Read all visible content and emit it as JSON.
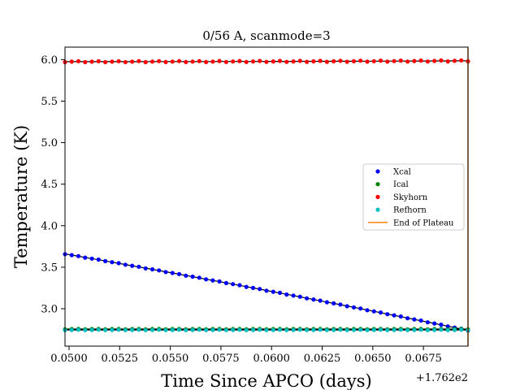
{
  "chart_data": {
    "type": "scatter",
    "title": "0/56 A, scanmode=3",
    "xlabel": "Time Since APCO (days)",
    "ylabel": "Temperature (K)",
    "x_offset_label": "+1.762e2",
    "xlim": [
      0.0498,
      0.0697
    ],
    "ylim": [
      2.55,
      6.15
    ],
    "x_ticks": [
      0.05,
      0.0525,
      0.055,
      0.0575,
      0.06,
      0.0625,
      0.065,
      0.0675
    ],
    "x_tick_labels": [
      "0.0500",
      "0.0525",
      "0.0550",
      "0.0575",
      "0.0600",
      "0.0625",
      "0.0650",
      "0.0675"
    ],
    "y_ticks": [
      3.0,
      3.5,
      4.0,
      4.5,
      5.0,
      5.5,
      6.0
    ],
    "y_tick_labels": [
      "3.0",
      "3.5",
      "4.0",
      "4.5",
      "5.0",
      "5.5",
      "6.0"
    ],
    "grid": false,
    "legend_position": "center-right",
    "x_start": 0.0498,
    "x_end": 0.0697,
    "n_points": 61,
    "series": [
      {
        "name": "Xcal",
        "color": "#0000ff",
        "start": 3.66,
        "end": 2.74,
        "curve": 0.08
      },
      {
        "name": "Ical",
        "color": "#008000",
        "start": 2.755,
        "end": 2.755,
        "curve": 0
      },
      {
        "name": "Skyhorn",
        "color": "#ff0000",
        "start": 5.975,
        "end": 5.985,
        "curve": -0.01
      },
      {
        "name": "Refhorn",
        "color": "#00bfbf",
        "start": 2.745,
        "end": 2.745,
        "curve": 0
      }
    ],
    "fit_lines_color": "#000000",
    "vline": {
      "name": "End of Plateau",
      "x": 0.0697,
      "color": "#ff7f0e"
    }
  }
}
